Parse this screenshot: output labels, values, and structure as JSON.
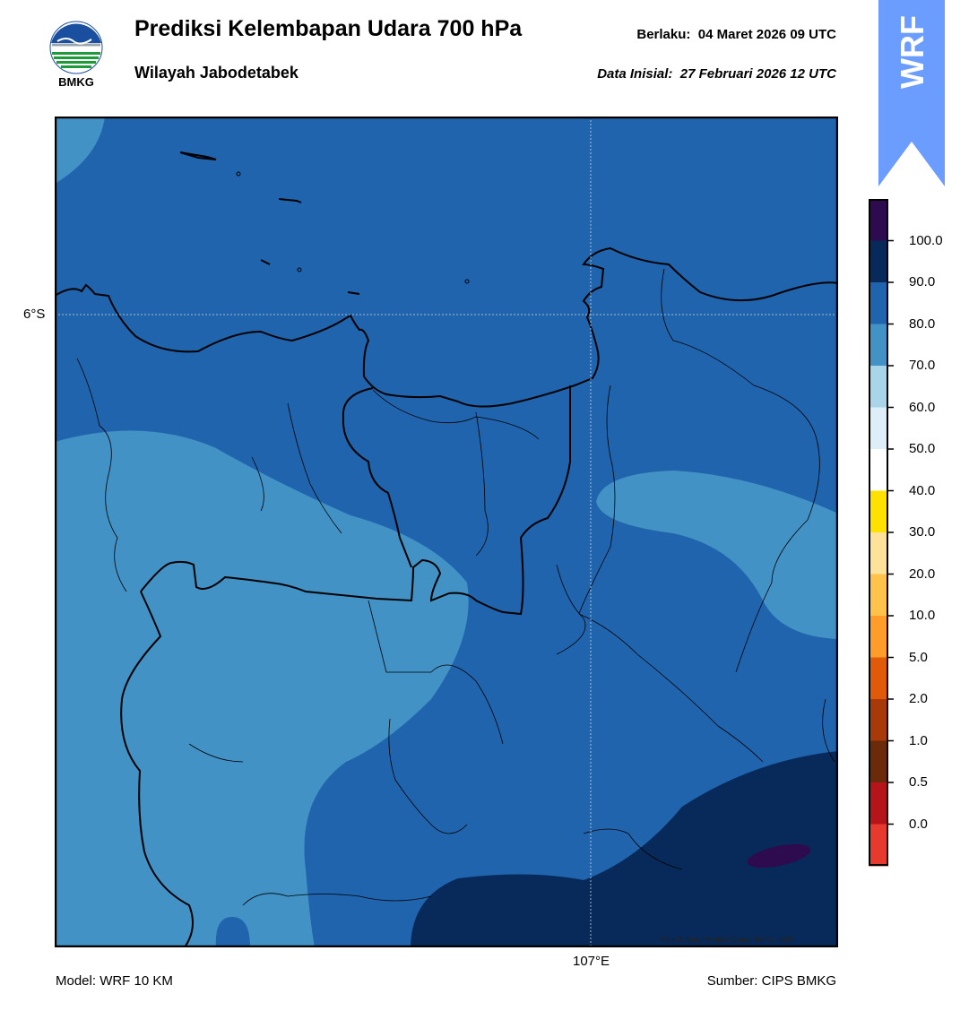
{
  "header": {
    "title": "Prediksi Kelembapan Udara 700 hPa",
    "subtitle": "Wilayah Jabodetabek",
    "valid_label": "Berlaku:",
    "valid_value": "04 Maret 2026 09 UTC",
    "init_label": "Data Inisial:",
    "init_value": "27 Februari 2026 12 UTC"
  },
  "logo": {
    "text": "BMKG",
    "icon": "bmkg-logo"
  },
  "badge": {
    "text": "WRF",
    "color": "#6b9cff"
  },
  "map": {
    "lat_label": "6°S",
    "lon_label": "107°E",
    "credit": "©Sub Bidang Prediksi Cuaca BMKG, 2020"
  },
  "footer": {
    "model": "Model: WRF 10 KM",
    "source": "Sumber: CIPS BMKG"
  },
  "legend": {
    "labels": [
      "100.0",
      "90.0",
      "80.0",
      "70.0",
      "60.0",
      "50.0",
      "40.0",
      "30.0",
      "20.0",
      "10.0",
      "5.0",
      "2.0",
      "1.0",
      "0.5",
      "0.0"
    ],
    "colors_top_to_bottom": [
      "#2d0b4e",
      "#082a5a",
      "#2064ae",
      "#4292c6",
      "#a8d5e8",
      "#deeef8",
      "#ffffff",
      "#ffe100",
      "#ffe29a",
      "#ffc24a",
      "#ff9c2a",
      "#e05a0a",
      "#a83a0a",
      "#6b2a0a",
      "#b4141a",
      "#e8392e"
    ]
  }
}
